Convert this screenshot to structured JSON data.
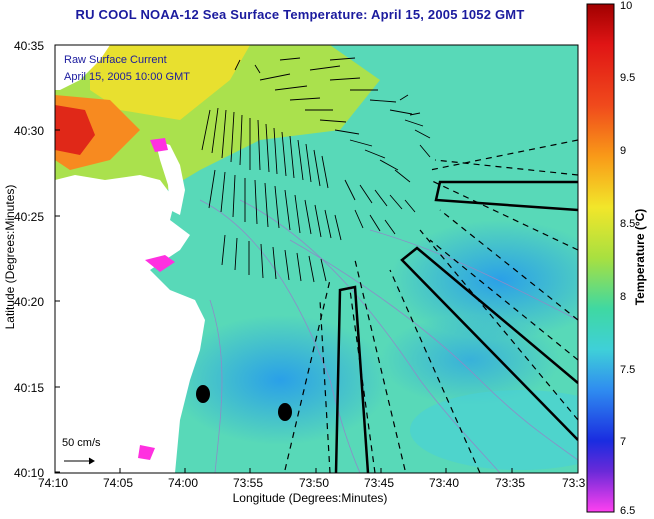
{
  "title": "RU COOL  NOAA-12  Sea Surface Temperature:  April 15, 2005 1052 GMT",
  "legend": {
    "line1": "Raw Surface Current",
    "line2": "April 15, 2005 10:00 GMT"
  },
  "scale_label": "50 cm/s",
  "y_axis": {
    "title": "Latitude (Degrees:Minutes)",
    "ticks": [
      "40:35",
      "40:30",
      "40:25",
      "40:20",
      "40:15",
      "40:10"
    ]
  },
  "x_axis": {
    "title": "Longitude (Degrees:Minutes)",
    "ticks": [
      "74:10",
      "74:05",
      "74:00",
      "73:55",
      "73:50",
      "73:45",
      "73:40",
      "73:35",
      "73:3"
    ]
  },
  "colorbar": {
    "title": "Temperature (°C)",
    "ticks": [
      "10",
      "9.5",
      "9",
      "8.5",
      "8",
      "7.5",
      "7",
      "6.5"
    ],
    "range": [
      6.5,
      10
    ]
  },
  "colors": {
    "title": "#1b1b9e",
    "land": "#ffffff",
    "water_main": "#55d9ac"
  }
}
